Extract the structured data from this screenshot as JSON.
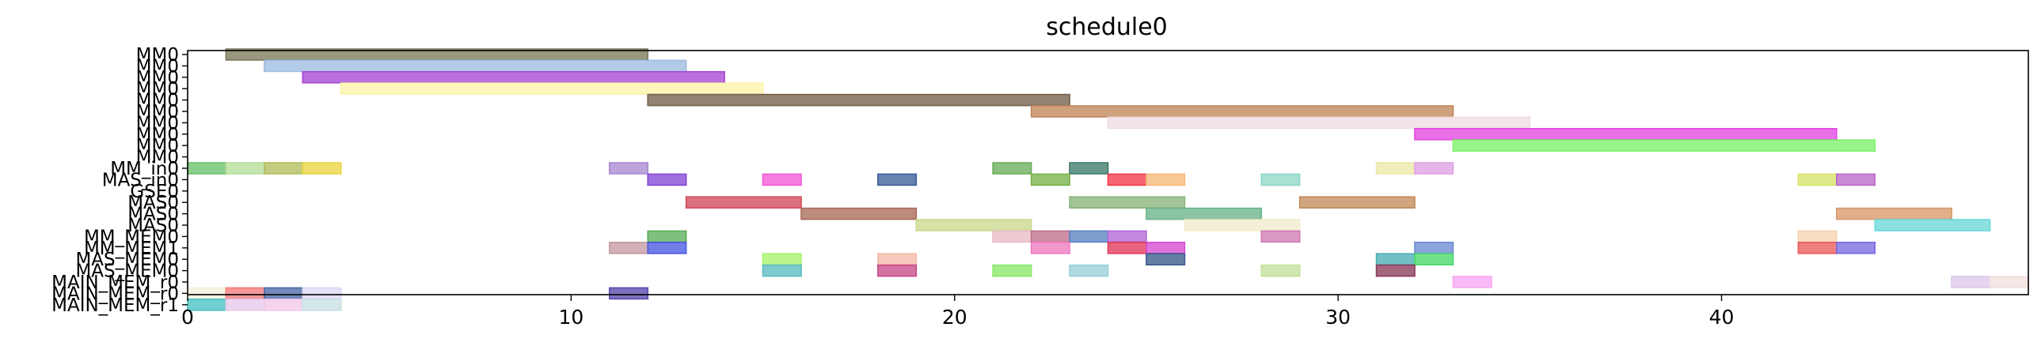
{
  "chart_data": {
    "type": "gantt",
    "title": "schedule0",
    "xlabel": "",
    "ylabel": "",
    "xlim": [
      0,
      48
    ],
    "xticks": [
      0,
      10,
      20,
      30,
      40
    ],
    "grid": false,
    "legend": "none",
    "rows": [
      "MM0",
      "MM0",
      "MM0",
      "MM0",
      "MM0",
      "MM0",
      "MM0",
      "MM0",
      "MM0",
      "MM0",
      "MM_in0",
      "MAS_in0",
      "GSE0",
      "MAS0",
      "MAS0",
      "MAS0",
      "MM_MEM0",
      "MM_MEM1",
      "MAS_MEM0",
      "MAS_MEM0",
      "MAIN_MEM_r0",
      "MAIN_MEM_r0",
      "MAIN_MEM_r1"
    ],
    "tasks": [
      {
        "row": 0,
        "start": 1,
        "end": 12,
        "color": "#7c7a5c"
      },
      {
        "row": 1,
        "start": 2,
        "end": 13,
        "color": "#9dbde2"
      },
      {
        "row": 2,
        "start": 3,
        "end": 14,
        "color": "#a646d6"
      },
      {
        "row": 3,
        "start": 4,
        "end": 15,
        "color": "#fbf4a8"
      },
      {
        "row": 4,
        "start": 12,
        "end": 23,
        "color": "#74604c"
      },
      {
        "row": 5,
        "start": 22,
        "end": 33,
        "color": "#c2865a"
      },
      {
        "row": 6,
        "start": 24,
        "end": 35,
        "color": "#efdde3"
      },
      {
        "row": 7,
        "start": 32,
        "end": 43,
        "color": "#e247e0"
      },
      {
        "row": 8,
        "start": 33,
        "end": 44,
        "color": "#7cf26a"
      },
      {
        "row": 10,
        "start": 0,
        "end": 1,
        "color": "#6cc06a"
      },
      {
        "row": 10,
        "start": 1,
        "end": 2,
        "color": "#b5df9a"
      },
      {
        "row": 10,
        "start": 2,
        "end": 3,
        "color": "#b2be5c"
      },
      {
        "row": 10,
        "start": 3,
        "end": 4,
        "color": "#ebd442"
      },
      {
        "row": 10,
        "start": 11,
        "end": 12,
        "color": "#a88ad2"
      },
      {
        "row": 10,
        "start": 21,
        "end": 22,
        "color": "#6aae5c"
      },
      {
        "row": 10,
        "start": 23,
        "end": 24,
        "color": "#3c7a6a"
      },
      {
        "row": 10,
        "start": 31,
        "end": 32,
        "color": "#ece9a8"
      },
      {
        "row": 10,
        "start": 32,
        "end": 33,
        "color": "#dfa2e6"
      },
      {
        "row": 11,
        "start": 12,
        "end": 13,
        "color": "#8448d6"
      },
      {
        "row": 11,
        "start": 15,
        "end": 16,
        "color": "#f55ad8"
      },
      {
        "row": 11,
        "start": 18,
        "end": 19,
        "color": "#3c5e9a"
      },
      {
        "row": 11,
        "start": 22,
        "end": 23,
        "color": "#78b24a"
      },
      {
        "row": 11,
        "start": 24,
        "end": 25,
        "color": "#f23a4a"
      },
      {
        "row": 11,
        "start": 25,
        "end": 26,
        "color": "#f7b87a"
      },
      {
        "row": 11,
        "start": 28,
        "end": 29,
        "color": "#8ed8c8"
      },
      {
        "row": 11,
        "start": 42,
        "end": 43,
        "color": "#d8e46a"
      },
      {
        "row": 11,
        "start": 43,
        "end": 44,
        "color": "#b86ac8"
      },
      {
        "row": 13,
        "start": 13,
        "end": 16,
        "color": "#d24a5c"
      },
      {
        "row": 13,
        "start": 23,
        "end": 26,
        "color": "#88b47a"
      },
      {
        "row": 13,
        "start": 29,
        "end": 32,
        "color": "#c28a5a"
      },
      {
        "row": 14,
        "start": 16,
        "end": 19,
        "color": "#a86a5a"
      },
      {
        "row": 14,
        "start": 25,
        "end": 28,
        "color": "#6ab48a"
      },
      {
        "row": 14,
        "start": 43,
        "end": 46,
        "color": "#d89a6a"
      },
      {
        "row": 15,
        "start": 19,
        "end": 22,
        "color": "#cad890"
      },
      {
        "row": 15,
        "start": 26,
        "end": 29,
        "color": "#efeccc"
      },
      {
        "row": 15,
        "start": 44,
        "end": 47,
        "color": "#6ad8d8"
      },
      {
        "row": 16,
        "start": 12,
        "end": 13,
        "color": "#5cae5a"
      },
      {
        "row": 16,
        "start": 21,
        "end": 22,
        "color": "#e8bcc4"
      },
      {
        "row": 16,
        "start": 22,
        "end": 23,
        "color": "#c2708a"
      },
      {
        "row": 16,
        "start": 23,
        "end": 24,
        "color": "#5a82c2"
      },
      {
        "row": 16,
        "start": 24,
        "end": 25,
        "color": "#b468d8"
      },
      {
        "row": 16,
        "start": 28,
        "end": 29,
        "color": "#d07ab6"
      },
      {
        "row": 16,
        "start": 42,
        "end": 43,
        "color": "#f7d4b2"
      },
      {
        "row": 17,
        "start": 11,
        "end": 12,
        "color": "#c49aa2"
      },
      {
        "row": 17,
        "start": 12,
        "end": 13,
        "color": "#4a5ae2"
      },
      {
        "row": 17,
        "start": 22,
        "end": 23,
        "color": "#f07ac2"
      },
      {
        "row": 17,
        "start": 24,
        "end": 25,
        "color": "#e23a5a"
      },
      {
        "row": 17,
        "start": 25,
        "end": 26,
        "color": "#d64ad0"
      },
      {
        "row": 17,
        "start": 32,
        "end": 33,
        "color": "#6a8ad2"
      },
      {
        "row": 17,
        "start": 42,
        "end": 43,
        "color": "#ea5a5a"
      },
      {
        "row": 17,
        "start": 43,
        "end": 44,
        "color": "#7a6ae2"
      },
      {
        "row": 18,
        "start": 15,
        "end": 16,
        "color": "#a8f26a"
      },
      {
        "row": 18,
        "start": 18,
        "end": 19,
        "color": "#f2b8a8"
      },
      {
        "row": 18,
        "start": 25,
        "end": 26,
        "color": "#3a5a8a"
      },
      {
        "row": 18,
        "start": 31,
        "end": 32,
        "color": "#4aaeb6"
      },
      {
        "row": 18,
        "start": 32,
        "end": 33,
        "color": "#4ad86a"
      },
      {
        "row": 19,
        "start": 15,
        "end": 16,
        "color": "#5abcc2"
      },
      {
        "row": 19,
        "start": 18,
        "end": 19,
        "color": "#c84a8a"
      },
      {
        "row": 19,
        "start": 21,
        "end": 22,
        "color": "#8ae86a"
      },
      {
        "row": 19,
        "start": 23,
        "end": 24,
        "color": "#9ad0d8"
      },
      {
        "row": 19,
        "start": 28,
        "end": 29,
        "color": "#c2e09a"
      },
      {
        "row": 19,
        "start": 31,
        "end": 32,
        "color": "#8a3a5a"
      },
      {
        "row": 20,
        "start": 33,
        "end": 34,
        "color": "#f7a8f2"
      },
      {
        "row": 20,
        "start": 46,
        "end": 47,
        "color": "#dcc8ea"
      },
      {
        "row": 20,
        "start": 47,
        "end": 48,
        "color": "#f4e0e0"
      },
      {
        "row": 21,
        "start": 0,
        "end": 1,
        "color": "#f4f0dc"
      },
      {
        "row": 21,
        "start": 1,
        "end": 2,
        "color": "#f47a7a"
      },
      {
        "row": 21,
        "start": 2,
        "end": 3,
        "color": "#4a6aa8"
      },
      {
        "row": 21,
        "start": 3,
        "end": 4,
        "color": "#e0d8f4"
      },
      {
        "row": 21,
        "start": 11,
        "end": 12,
        "color": "#5a4aae"
      },
      {
        "row": 22,
        "start": 0,
        "end": 1,
        "color": "#4ac2c2"
      },
      {
        "row": 22,
        "start": 1,
        "end": 2,
        "color": "#e8c8ea"
      },
      {
        "row": 22,
        "start": 2,
        "end": 3,
        "color": "#f2c8e8"
      },
      {
        "row": 22,
        "start": 3,
        "end": 4,
        "color": "#c8e0e4"
      }
    ]
  }
}
